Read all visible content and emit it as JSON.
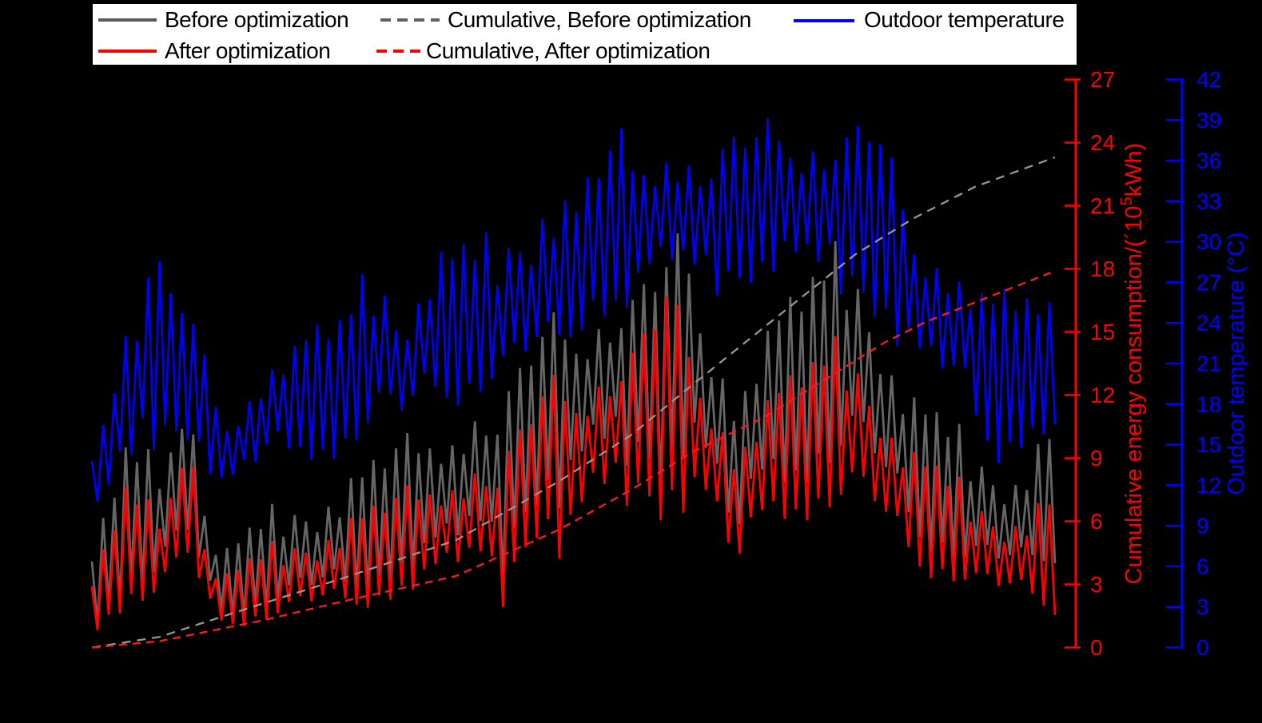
{
  "legend": {
    "row1": [
      {
        "label": "Before optimization",
        "color": "#595959",
        "style": "solid"
      },
      {
        "label": "Cumulative, Before optimization",
        "color": "#616161",
        "style": "dashed"
      },
      {
        "label": "Outdoor temperature",
        "color": "#0000ff",
        "style": "solid"
      }
    ],
    "row2": [
      {
        "label": "After optimization",
        "color": "#ff0000",
        "style": "solid"
      },
      {
        "label": "Cumulative, After optimization",
        "color": "#ff0000",
        "style": "dashed"
      }
    ]
  },
  "chart_data": {
    "type": "line",
    "background": "#000000",
    "grid": false,
    "legend_position": "top",
    "x_axis": {
      "tick_labels_visible": false
    },
    "energy_axis": {
      "label_pre": "Cumulative energy consumption/(´10",
      "label_sup": "5",
      "label_post": "kWh)",
      "range": [
        0,
        27
      ],
      "tick_step": 3,
      "color": "#ff0000"
    },
    "temperature_axis": {
      "label": "Outdoor temperature (°C)",
      "range": [
        0,
        42
      ],
      "tick_step": 3,
      "color": "#0000ff"
    },
    "n_points": 172,
    "jitter": [
      0.72,
      0.15,
      0.91,
      0.33,
      0.58,
      0.07,
      0.84,
      0.42,
      0.66,
      0.21,
      0.95,
      0.38,
      0.11,
      0.77,
      0.49,
      0.88,
      0.26,
      0.63,
      0.04,
      0.7,
      0.35,
      0.92,
      0.17,
      0.55,
      0.81,
      0.29,
      0.68,
      0.1,
      0.86,
      0.44,
      0.6,
      0.23,
      0.97,
      0.4,
      0.13,
      0.75,
      0.52,
      0.89,
      0.31,
      0.65,
      0.02,
      0.79,
      0.47,
      0.94,
      0.19,
      0.57,
      0.83,
      0.27,
      0.71,
      0.08,
      0.9,
      0.36,
      0.62,
      0.14,
      0.85,
      0.45,
      0.99,
      0.24,
      0.53,
      0.69,
      0.5
    ],
    "series": [
      {
        "name": "Before optimization",
        "kind": "daily",
        "axis": "energy",
        "color": "#666666",
        "width": 2.8,
        "jitter_offset": 0,
        "envelope": [
          [
            0,
            4.5,
            0.6
          ],
          [
            0.035,
            10,
            2
          ],
          [
            0.062,
            9.5,
            2.5
          ],
          [
            0.085,
            11,
            3
          ],
          [
            0.103,
            15.8,
            3
          ],
          [
            0.115,
            8,
            2
          ],
          [
            0.135,
            4.8,
            1
          ],
          [
            0.19,
            7,
            1.4
          ],
          [
            0.26,
            8.2,
            1.8
          ],
          [
            0.32,
            10,
            2.8
          ],
          [
            0.37,
            11.5,
            3.5
          ],
          [
            0.405,
            13,
            4
          ],
          [
            0.423,
            12.5,
            2
          ],
          [
            0.45,
            14,
            5.5
          ],
          [
            0.47,
            16,
            7
          ],
          [
            0.49,
            16.5,
            5.4
          ],
          [
            0.52,
            17,
            8
          ],
          [
            0.57,
            17.5,
            8
          ],
          [
            0.596,
            19,
            7
          ],
          [
            0.615,
            20.5,
            8
          ],
          [
            0.64,
            16.5,
            7
          ],
          [
            0.672,
            14,
            2.5
          ],
          [
            0.7,
            16,
            7.5
          ],
          [
            0.725,
            17,
            7
          ],
          [
            0.786,
            20.3,
            8
          ],
          [
            0.812,
            17.5,
            7
          ],
          [
            0.853,
            12.5,
            4.5
          ],
          [
            0.906,
            10.5,
            3.2
          ],
          [
            0.934,
            9.5,
            2.8
          ],
          [
            0.96,
            9,
            2.6
          ],
          [
            1,
            11,
            3.6
          ]
        ]
      },
      {
        "name": "Outdoor temperature",
        "kind": "daily",
        "axis": "temperature",
        "color": "#0000ff",
        "width": 2.6,
        "jitter_offset": 23,
        "envelope": [
          [
            0,
            15,
            8
          ],
          [
            0.03,
            26,
            10
          ],
          [
            0.055,
            28,
            12
          ],
          [
            0.062,
            35.5,
            13
          ],
          [
            0.075,
            27,
            14
          ],
          [
            0.1,
            26,
            15
          ],
          [
            0.135,
            17.5,
            10.5
          ],
          [
            0.19,
            23,
            12.5
          ],
          [
            0.26,
            25,
            13.5
          ],
          [
            0.296,
            30,
            15
          ],
          [
            0.32,
            26,
            15
          ],
          [
            0.35,
            30,
            16.5
          ],
          [
            0.42,
            31,
            18
          ],
          [
            0.475,
            35.5,
            19
          ],
          [
            0.5,
            33,
            22
          ],
          [
            0.52,
            36,
            24
          ],
          [
            0.549,
            38.5,
            23
          ],
          [
            0.57,
            37,
            25
          ],
          [
            0.6,
            39.5,
            26
          ],
          [
            0.64,
            37.5,
            25
          ],
          [
            0.672,
            38.5,
            26
          ],
          [
            0.7,
            39.5,
            27
          ],
          [
            0.73,
            40,
            26
          ],
          [
            0.786,
            39,
            25
          ],
          [
            0.812,
            39.5,
            24
          ],
          [
            0.853,
            33,
            19
          ],
          [
            0.88,
            31,
            18
          ],
          [
            0.906,
            29.5,
            16.5
          ],
          [
            0.934,
            27,
            12
          ],
          [
            0.96,
            27,
            14
          ],
          [
            1,
            25.5,
            15
          ]
        ]
      },
      {
        "name": "After optimization",
        "kind": "daily",
        "axis": "energy",
        "color": "#ff0000",
        "width": 2.8,
        "jitter_offset": 0,
        "envelope": [
          [
            0,
            3.2,
            0.4
          ],
          [
            0.035,
            8,
            1.5
          ],
          [
            0.062,
            7,
            1.8
          ],
          [
            0.085,
            8.5,
            2.2
          ],
          [
            0.103,
            13.8,
            2.2
          ],
          [
            0.115,
            6,
            1.4
          ],
          [
            0.135,
            3.6,
            0.7
          ],
          [
            0.19,
            5.2,
            1
          ],
          [
            0.26,
            6.3,
            1.3
          ],
          [
            0.32,
            7.5,
            2
          ],
          [
            0.37,
            9,
            2.6
          ],
          [
            0.405,
            10,
            3
          ],
          [
            0.423,
            9.5,
            1
          ],
          [
            0.45,
            11,
            4
          ],
          [
            0.47,
            13,
            5.5
          ],
          [
            0.49,
            13.5,
            2.8
          ],
          [
            0.52,
            14,
            6
          ],
          [
            0.57,
            15,
            6.2
          ],
          [
            0.596,
            17.7,
            5.5
          ],
          [
            0.64,
            13.5,
            5.5
          ],
          [
            0.672,
            11,
            1.8
          ],
          [
            0.7,
            12.5,
            5.8
          ],
          [
            0.725,
            13.2,
            5.5
          ],
          [
            0.786,
            15.5,
            6
          ],
          [
            0.812,
            13.5,
            5.2
          ],
          [
            0.853,
            9.8,
            3.2
          ],
          [
            0.906,
            8,
            2.4
          ],
          [
            0.934,
            7.2,
            1.8
          ],
          [
            0.96,
            6.8,
            1.6
          ],
          [
            1,
            7.6,
            1.2
          ]
        ]
      },
      {
        "name": "Cumulative, Before optimization",
        "kind": "cumulative",
        "axis": "energy",
        "color": "#969696",
        "width": 2.3,
        "dash": "11 8",
        "points": [
          [
            0,
            0
          ],
          [
            0.07,
            0.5
          ],
          [
            0.178,
            2.1
          ],
          [
            0.261,
            3.3
          ],
          [
            0.378,
            5.1
          ],
          [
            0.485,
            7.9
          ],
          [
            0.56,
            10.1
          ],
          [
            0.624,
            12.5
          ],
          [
            0.7,
            15.3
          ],
          [
            0.793,
            18.7
          ],
          [
            0.853,
            20.4
          ],
          [
            0.917,
            21.9
          ],
          [
            1,
            23.3
          ]
        ]
      },
      {
        "name": "Cumulative, After optimization",
        "kind": "cumulative",
        "axis": "energy",
        "color": "#ff1a1a",
        "width": 2.3,
        "dash": "10 7",
        "points": [
          [
            0,
            0
          ],
          [
            0.07,
            0.3
          ],
          [
            0.178,
            1.3
          ],
          [
            0.261,
            2.2
          ],
          [
            0.378,
            3.4
          ],
          [
            0.485,
            5.6
          ],
          [
            0.56,
            7.5
          ],
          [
            0.624,
            9.3
          ],
          [
            0.7,
            11.0
          ],
          [
            0.823,
            14.5
          ],
          [
            0.867,
            15.5
          ],
          [
            0.911,
            16.3
          ],
          [
            1,
            17.9
          ]
        ]
      }
    ],
    "draw_order": [
      0,
      1,
      2,
      3,
      4
    ]
  }
}
